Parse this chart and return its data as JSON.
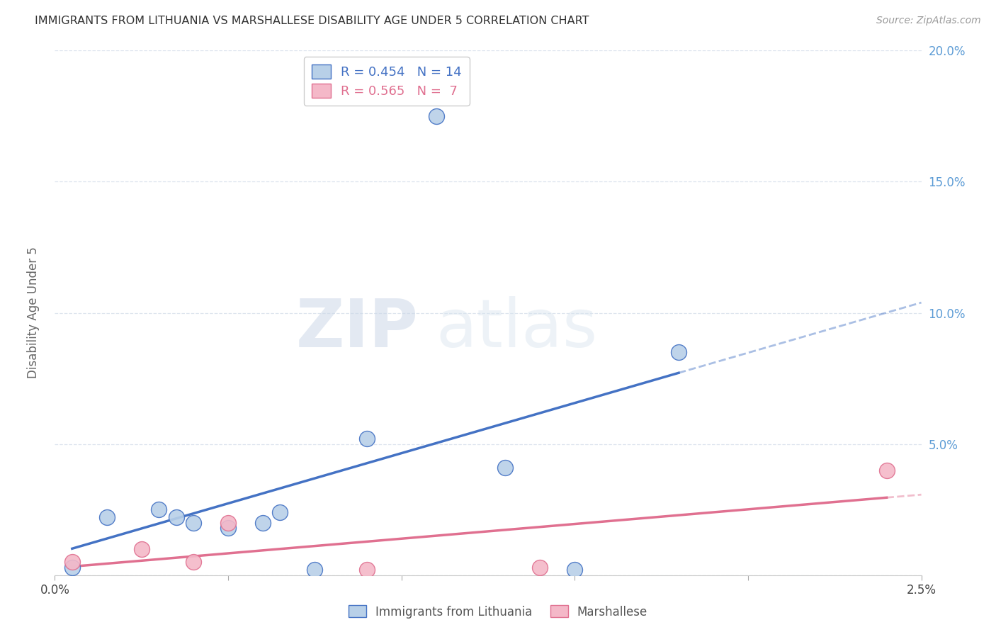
{
  "title": "IMMIGRANTS FROM LITHUANIA VS MARSHALLESE DISABILITY AGE UNDER 5 CORRELATION CHART",
  "source": "Source: ZipAtlas.com",
  "ylabel": "Disability Age Under 5",
  "xlim": [
    0.0,
    0.025
  ],
  "ylim": [
    0.0,
    0.2
  ],
  "xtick_positions": [
    0.0,
    0.005,
    0.01,
    0.015,
    0.02,
    0.025
  ],
  "xtick_labels": [
    "0.0%",
    "",
    "",
    "",
    "",
    "2.5%"
  ],
  "ytick_positions": [
    0.0,
    0.05,
    0.1,
    0.15,
    0.2
  ],
  "ytick_labels_left": [
    "",
    "",
    "",
    "",
    ""
  ],
  "ytick_labels_right": [
    "",
    "5.0%",
    "10.0%",
    "15.0%",
    "20.0%"
  ],
  "legend_entry1": "R = 0.454   N = 14",
  "legend_entry2": "R = 0.565   N =  7",
  "watermark_zip": "ZIP",
  "watermark_atlas": "atlas",
  "lithuania_color": "#b8d0e8",
  "lithuania_line_color": "#4472c4",
  "marshallese_color": "#f4b8c8",
  "marshallese_line_color": "#e07090",
  "background_color": "#ffffff",
  "grid_color": "#dde4ee",
  "right_tick_color": "#5b9bd5",
  "lithuania_x": [
    0.0005,
    0.0015,
    0.003,
    0.0035,
    0.004,
    0.005,
    0.006,
    0.0065,
    0.0075,
    0.009,
    0.011,
    0.013,
    0.015,
    0.018
  ],
  "lithuania_y": [
    0.003,
    0.022,
    0.025,
    0.022,
    0.02,
    0.018,
    0.02,
    0.024,
    0.002,
    0.052,
    0.175,
    0.041,
    0.002,
    0.085
  ],
  "marshallese_x": [
    0.0005,
    0.0025,
    0.004,
    0.005,
    0.009,
    0.014,
    0.024
  ],
  "marshallese_y": [
    0.005,
    0.01,
    0.005,
    0.02,
    0.002,
    0.003,
    0.04
  ],
  "lith_line_x0": 0.0,
  "lith_line_y0": 0.0,
  "lith_line_x1": 0.018,
  "lith_line_y1": 0.09,
  "marsh_line_x0": 0.0,
  "marsh_line_y0": 0.003,
  "marsh_line_x1": 0.024,
  "marsh_line_y1": 0.035
}
